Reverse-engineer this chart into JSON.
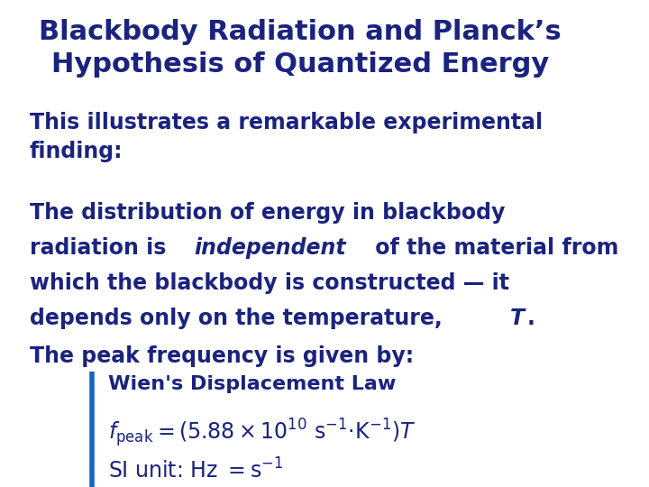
{
  "title_line1": "Blackbody Radiation and Planck’s",
  "title_line2": "Hypothesis of Quantized Energy",
  "title_color": "#1a237e",
  "title_fontsize": 22,
  "body_color": "#1a237e",
  "body_fontsize": 17,
  "para1": "This illustrates a remarkable experimental\nfinding:",
  "para3": "The peak frequency is given by:",
  "box_label": "Wien's Displacement Law",
  "background_color": "#ffffff",
  "bar_color": "#1565c0",
  "bar_linewidth": 4,
  "p2_line1": "The distribution of energy in blackbody",
  "p2_line2_pre": "radiation is ",
  "p2_line2_italic": "independent",
  "p2_line2_post": " of the material from",
  "p2_line3": "which the blackbody is constructed — it",
  "p2_line4_pre": "depends only on the temperature, ",
  "p2_line4_italic": "T",
  "p2_line4_post": "."
}
